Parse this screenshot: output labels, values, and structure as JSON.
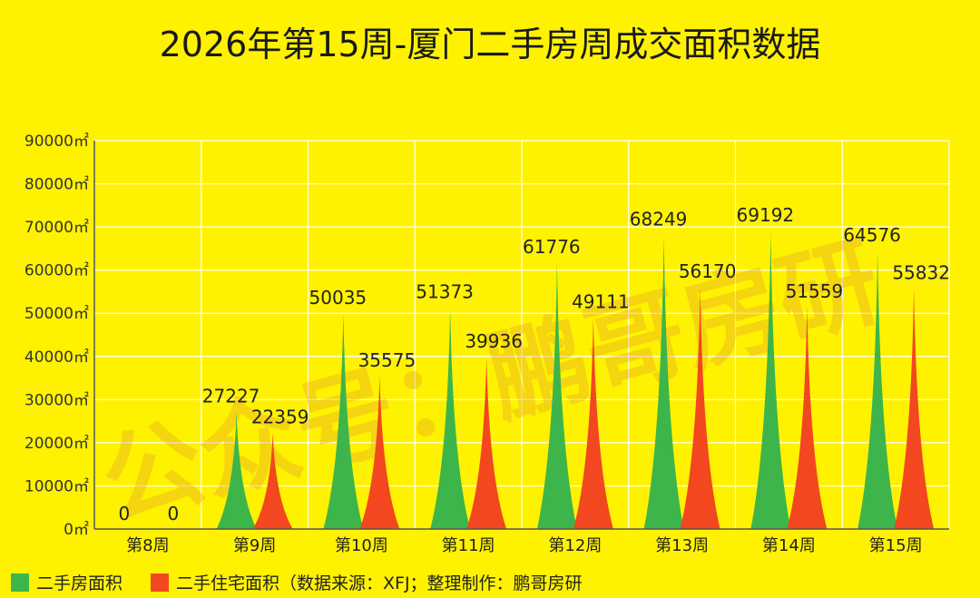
{
  "chart_data": {
    "type": "bar",
    "title": "2026年第15周-厦门二手房周成交面积数据",
    "categories": [
      "第8周",
      "第9周",
      "第10周",
      "第11周",
      "第12周",
      "第13周",
      "第14周",
      "第15周"
    ],
    "series": [
      {
        "name": "二手房面积",
        "color": "#3DB54A",
        "values": [
          0,
          27227,
          50035,
          51373,
          61776,
          68249,
          69192,
          64576
        ]
      },
      {
        "name": "二手住宅面积（数据来源：XFJ；整理制作：鹏哥房研",
        "color": "#F2471F",
        "values": [
          0,
          22359,
          35575,
          39936,
          49111,
          56170,
          51559,
          55832
        ]
      }
    ],
    "yticks": [
      "0㎡",
      "10000㎡",
      "20000㎡",
      "30000㎡",
      "40000㎡",
      "50000㎡",
      "60000㎡",
      "70000㎡",
      "80000㎡",
      "90000㎡"
    ],
    "ylim": [
      0,
      90000
    ],
    "grid": true,
    "legend_position": "bottom-left"
  },
  "watermark": "公众号：鹏哥房研",
  "colors": {
    "background": "#FFF200",
    "grid": "#FFFFFF",
    "axis": "#555555"
  }
}
